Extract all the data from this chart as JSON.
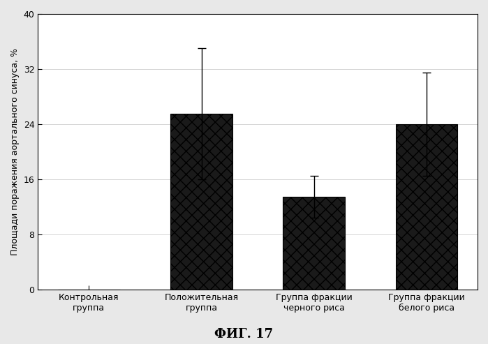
{
  "categories": [
    "Контрольная\nгруппа",
    "Положительная\nгруппа",
    "Группа фракции\nчерного риса",
    "Группа фракции\nбелого риса"
  ],
  "values": [
    0.0,
    25.5,
    13.5,
    24.0
  ],
  "errors": [
    0.0,
    9.5,
    3.0,
    7.5
  ],
  "bar_color": "#1a1a1a",
  "ylabel": "Площади поражения аортального синуса, %",
  "ylim": [
    0,
    40
  ],
  "yticks": [
    0,
    8,
    16,
    24,
    32,
    40
  ],
  "figure_label": "ФИГ. 17",
  "background_color": "#e8e8e8",
  "plot_bg_color": "#ffffff",
  "bar_width": 0.55
}
